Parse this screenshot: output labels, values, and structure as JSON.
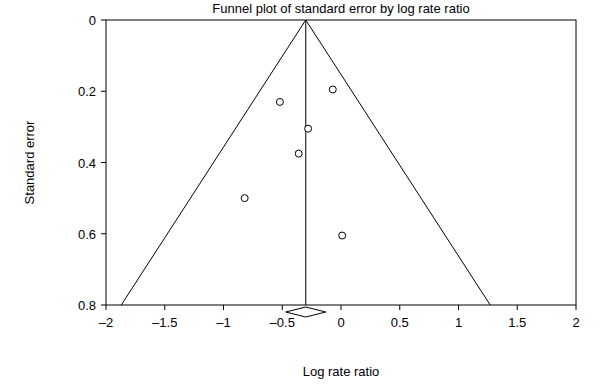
{
  "chart_data": {
    "type": "scatter",
    "title": "Funnel plot of standard error by log rate ratio",
    "x_label": "Log rate ratio",
    "y_label": "Standard error",
    "x": [
      -0.52,
      -0.07,
      -0.28,
      -0.36,
      -0.82,
      0.01
    ],
    "values": [
      0.23,
      0.195,
      0.305,
      0.375,
      0.5,
      0.605
    ],
    "xlim": [
      -2,
      2
    ],
    "ylim": [
      0.8,
      0
    ],
    "xticks": [
      -2,
      -1.5,
      -1,
      -0.5,
      0,
      0.5,
      1,
      1.5,
      2
    ],
    "yticks": [
      0,
      0.2,
      0.4,
      0.6,
      0.8
    ],
    "marker": "circle",
    "color": "#000000",
    "pooled_estimate": -0.3,
    "pooled_ci": [
      -0.47,
      -0.13
    ],
    "funnel_limits": [
      -1.87,
      1.27
    ]
  }
}
